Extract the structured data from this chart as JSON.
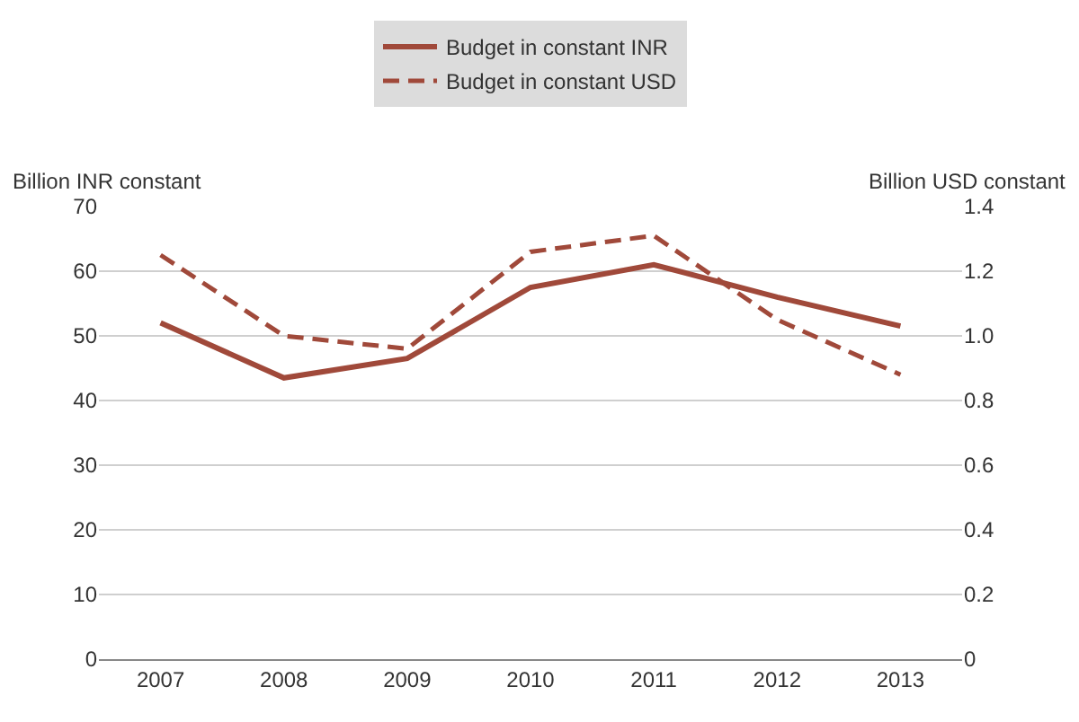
{
  "chart_data": {
    "type": "line",
    "categories": [
      "2007",
      "2008",
      "2009",
      "2010",
      "2011",
      "2012",
      "2013"
    ],
    "ylabel": "Billion INR constant",
    "y2label": "Billion USD constant",
    "series": [
      {
        "name": "Budget in constant INR",
        "color": "#a0493a",
        "values": [
          52,
          43.5,
          46.5,
          57.5,
          61,
          56,
          51.5
        ],
        "line_style": "solid"
      },
      {
        "name": "Budget in constant USD",
        "color": "#a0493a",
        "values": [
          1.25,
          1.0,
          0.96,
          1.26,
          1.31,
          1.05,
          0.88
        ],
        "line_style": "dashed",
        "axis": "y2"
      }
    ],
    "ylim": [
      0,
      70
    ],
    "yticks": [
      0,
      10,
      20,
      30,
      40,
      50,
      60,
      70
    ],
    "y2lim": [
      0,
      1.4
    ],
    "y2ticks": [
      0,
      {
        "value": 0.2,
        "label": "0.2"
      },
      {
        "value": 0.4,
        "label": "0.4"
      },
      {
        "value": 0.6,
        "label": "0.6"
      },
      {
        "value": 0.8,
        "label": "0.8"
      },
      {
        "value": 1.0,
        "label": "1.0"
      },
      {
        "value": 1.2,
        "label": "1.2"
      },
      {
        "value": 1.4,
        "label": "1.4"
      }
    ],
    "grid": "y",
    "legend": "top",
    "marker": "none"
  }
}
